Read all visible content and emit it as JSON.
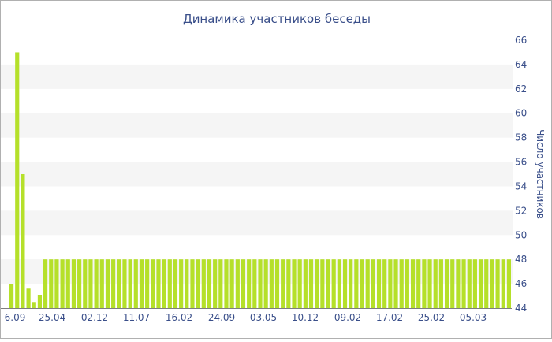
{
  "chart_data": {
    "type": "bar",
    "title": "Динамика участников беседы",
    "ylabel": "Число участников",
    "xlabel": "",
    "ylim": [
      44,
      66
    ],
    "y_axis_side": "right",
    "grid": "alternating horizontal bands",
    "y_ticks": [
      44,
      46,
      48,
      50,
      52,
      54,
      56,
      58,
      60,
      62,
      64,
      66
    ],
    "x_tick_labels": [
      "6.09",
      "25.04",
      "02.12",
      "11.07",
      "16.02",
      "24.09",
      "03.05",
      "10.12",
      "09.02",
      "17.02",
      "25.02",
      "05.03"
    ],
    "bar_color": "#b5e02a",
    "band_color": "#f5f5f5",
    "text_color": "#3a4f8a",
    "values": [
      46,
      65,
      55,
      45.6,
      44.5,
      45.1,
      48,
      48,
      48,
      48,
      48,
      48,
      48,
      48,
      48,
      48,
      48,
      48,
      48,
      48,
      48,
      48,
      48,
      48,
      48,
      48,
      48,
      48,
      48,
      48,
      48,
      48,
      48,
      48,
      48,
      48,
      48,
      48,
      48,
      48,
      48,
      48,
      48,
      48,
      48,
      48,
      48,
      48,
      48,
      48,
      48,
      48,
      48,
      48,
      48,
      48,
      48,
      48,
      48,
      48,
      48,
      48,
      48,
      48,
      48,
      48,
      48,
      48,
      48,
      48,
      48,
      48,
      48,
      48,
      48,
      48,
      48,
      48,
      48,
      48,
      48,
      48,
      48,
      48,
      48,
      48,
      48,
      48,
      48
    ]
  }
}
